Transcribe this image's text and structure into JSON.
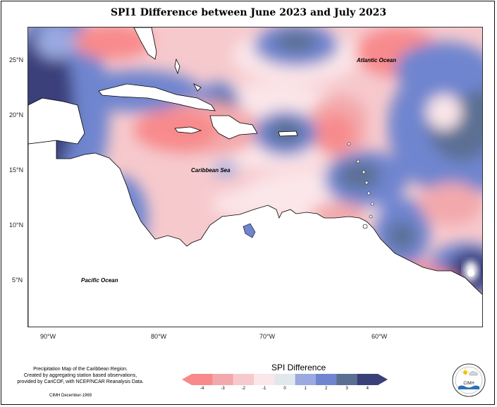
{
  "title": "SPI1 Difference between June 2023 and July 2023",
  "map": {
    "lat_labels": [
      "25°N",
      "20°N",
      "15°N",
      "10°N",
      "5°N"
    ],
    "lon_labels": [
      "90°W",
      "80°W",
      "70°W",
      "60°W"
    ],
    "ocean_labels": {
      "atlantic": "Atlantic Ocean",
      "caribbean": "Caribbean Sea",
      "pacific": "Pacific Ocean"
    }
  },
  "legend": {
    "title": "SPI Difference",
    "ticks": [
      "-4",
      "-3",
      "-2",
      "-1",
      "0",
      "1",
      "2",
      "3",
      "4"
    ],
    "colors": [
      "#f88a8c",
      "#f3a9ac",
      "#f6c9cd",
      "#fbe6e9",
      "#e0e8ec",
      "#9aa9e0",
      "#6f85cf",
      "#5b6f94",
      "#3a3f7a"
    ]
  },
  "credits": {
    "line1": "Precipitation Map of the Caribbean Region.",
    "line2": "Created by aggregating station based observations,",
    "line3": "provided by CariCOF, with NCEP/NCAR Reanalysis Data.",
    "date": "CIMH December-1969"
  },
  "logo": {
    "text": "CIMH",
    "icon": "cimh-logo-icon"
  }
}
